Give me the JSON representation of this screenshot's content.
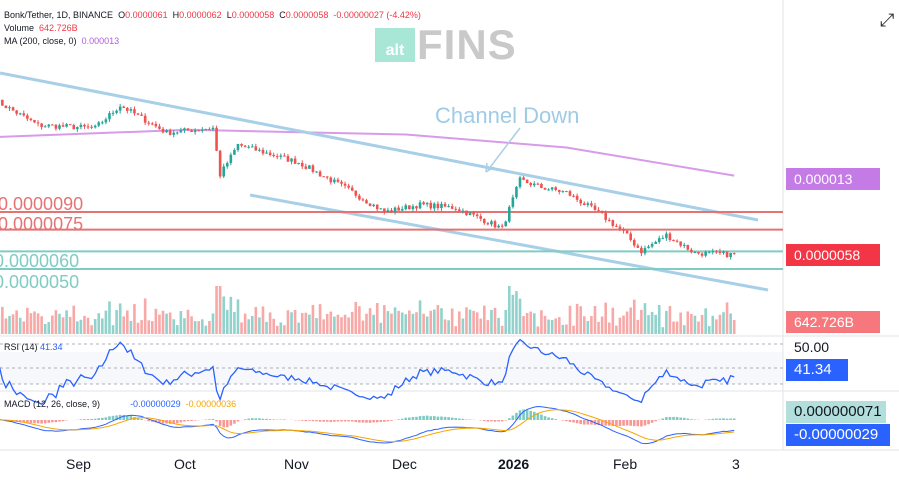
{
  "header": {
    "symbol": "Bonk/Tether, 1D, BINANCE",
    "o_label": "O",
    "o": "0.0000061",
    "h_label": "H",
    "h": "0.0000062",
    "l_label": "L",
    "l": "0.0000058",
    "c_label": "C",
    "c": "0.0000058",
    "change": "-0.00000027 (-4.42%)",
    "volume_label": "Volume",
    "volume": "642.726B",
    "ma_label": "MA (200, close, 0)",
    "ma": "0.000013"
  },
  "logo": {
    "alt": "alt",
    "fins": "FINS"
  },
  "annotation": "Channel Down",
  "levels": {
    "r1": "$0.0000090",
    "r2": "$0.0000075",
    "s1": "0.0000060",
    "s2": "0.0000050"
  },
  "price_labels": {
    "ma": "0.000013",
    "last": "0.0000058",
    "volume": "642.726B",
    "rsi": "41.34",
    "rsi_mid": "50.00",
    "macd_hist": "0.000000071",
    "macd": "-0.00000029"
  },
  "rsi": {
    "label": "RSI (14)",
    "value": "41.34"
  },
  "macd": {
    "label": "MACD (12, 26, close, 9)",
    "macd": "-0.00000029",
    "signal": "-0.00000036"
  },
  "time_axis": [
    "Sep",
    "Oct",
    "Nov",
    "Dec",
    "2026",
    "Feb",
    "3"
  ],
  "colors": {
    "up": "#26a69a",
    "down": "#ef5350",
    "channel": "#a8cfe8",
    "ma": "#d89be8",
    "resistance": "#e57373",
    "support": "#80cbc4",
    "rsi": "#2962ff"
  },
  "chart_data": {
    "type": "candlestick",
    "scale": "log",
    "close_keypoints": [
      [
        "2025-08-08",
        2.85e-05
      ],
      [
        "2025-08-20",
        2.2e-05
      ],
      [
        "2025-09-05",
        2.14e-05
      ],
      [
        "2025-09-12",
        2.7e-05
      ],
      [
        "2025-09-25",
        2.04e-05
      ],
      [
        "2025-10-08",
        2.14e-05
      ],
      [
        "2025-10-10",
        1.32e-05
      ],
      [
        "2025-10-15",
        1.8e-05
      ],
      [
        "2025-11-01",
        1.5e-05
      ],
      [
        "2025-11-15",
        1.13e-05
      ],
      [
        "2025-11-25",
        9e-06
      ],
      [
        "2025-12-05",
        9.7e-06
      ],
      [
        "2025-12-15",
        9.4e-06
      ],
      [
        "2025-12-28",
        7.6e-06
      ],
      [
        "2026-01-02",
        1.25e-05
      ],
      [
        "2026-01-08",
        1.16e-05
      ],
      [
        "2026-01-15",
        1.1e-05
      ],
      [
        "2026-01-25",
        8.7e-06
      ],
      [
        "2026-01-31",
        7.3e-06
      ],
      [
        "2026-02-05",
        6e-06
      ],
      [
        "2026-02-12",
        7.1e-06
      ],
      [
        "2026-02-20",
        5.9e-06
      ],
      [
        "2026-03-03",
        5.8e-06
      ]
    ],
    "ma200_keypoints": [
      [
        "2025-08-08",
        1.95e-05
      ],
      [
        "2025-10-01",
        2.1e-05
      ],
      [
        "2025-12-01",
        2e-05
      ],
      [
        "2026-01-15",
        1.75e-05
      ],
      [
        "2026-03-03",
        1.31e-05
      ]
    ],
    "horizontal_levels": [
      9e-06,
      7.5e-06,
      6e-06,
      5e-06
    ]
  }
}
